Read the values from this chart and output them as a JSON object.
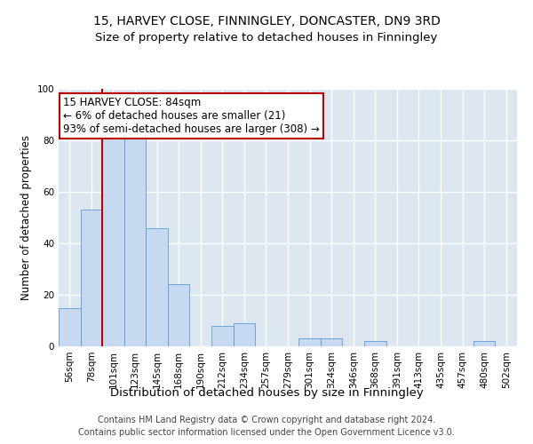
{
  "title1": "15, HARVEY CLOSE, FINNINGLEY, DONCASTER, DN9 3RD",
  "title2": "Size of property relative to detached houses in Finningley",
  "xlabel": "Distribution of detached houses by size in Finningley",
  "ylabel": "Number of detached properties",
  "footnote1": "Contains HM Land Registry data © Crown copyright and database right 2024.",
  "footnote2": "Contains public sector information licensed under the Open Government Licence v3.0.",
  "bin_labels": [
    "56sqm",
    "78sqm",
    "101sqm",
    "123sqm",
    "145sqm",
    "168sqm",
    "190sqm",
    "212sqm",
    "234sqm",
    "257sqm",
    "279sqm",
    "301sqm",
    "324sqm",
    "346sqm",
    "368sqm",
    "391sqm",
    "413sqm",
    "435sqm",
    "457sqm",
    "480sqm",
    "502sqm"
  ],
  "bar_values": [
    15,
    53,
    82,
    85,
    46,
    24,
    0,
    8,
    9,
    0,
    0,
    3,
    3,
    0,
    2,
    0,
    0,
    0,
    0,
    2,
    0
  ],
  "bar_color": "#c6d9f0",
  "bar_edge_color": "#5b9bd5",
  "vline_x": 1.5,
  "vline_color": "#c00000",
  "annotation_text": "15 HARVEY CLOSE: 84sqm\n← 6% of detached houses are smaller (21)\n93% of semi-detached houses are larger (308) →",
  "annotation_box_color": "#c00000",
  "ylim": [
    0,
    100
  ],
  "yticks": [
    0,
    20,
    40,
    60,
    80,
    100
  ],
  "bg_color": "#dce6f1",
  "grid_color": "#ffffff",
  "fig_bg_color": "#ffffff",
  "title1_fontsize": 10,
  "title2_fontsize": 9.5,
  "xlabel_fontsize": 9.5,
  "ylabel_fontsize": 8.5,
  "tick_fontsize": 7.5,
  "annot_fontsize": 8.5,
  "footnote_fontsize": 7
}
